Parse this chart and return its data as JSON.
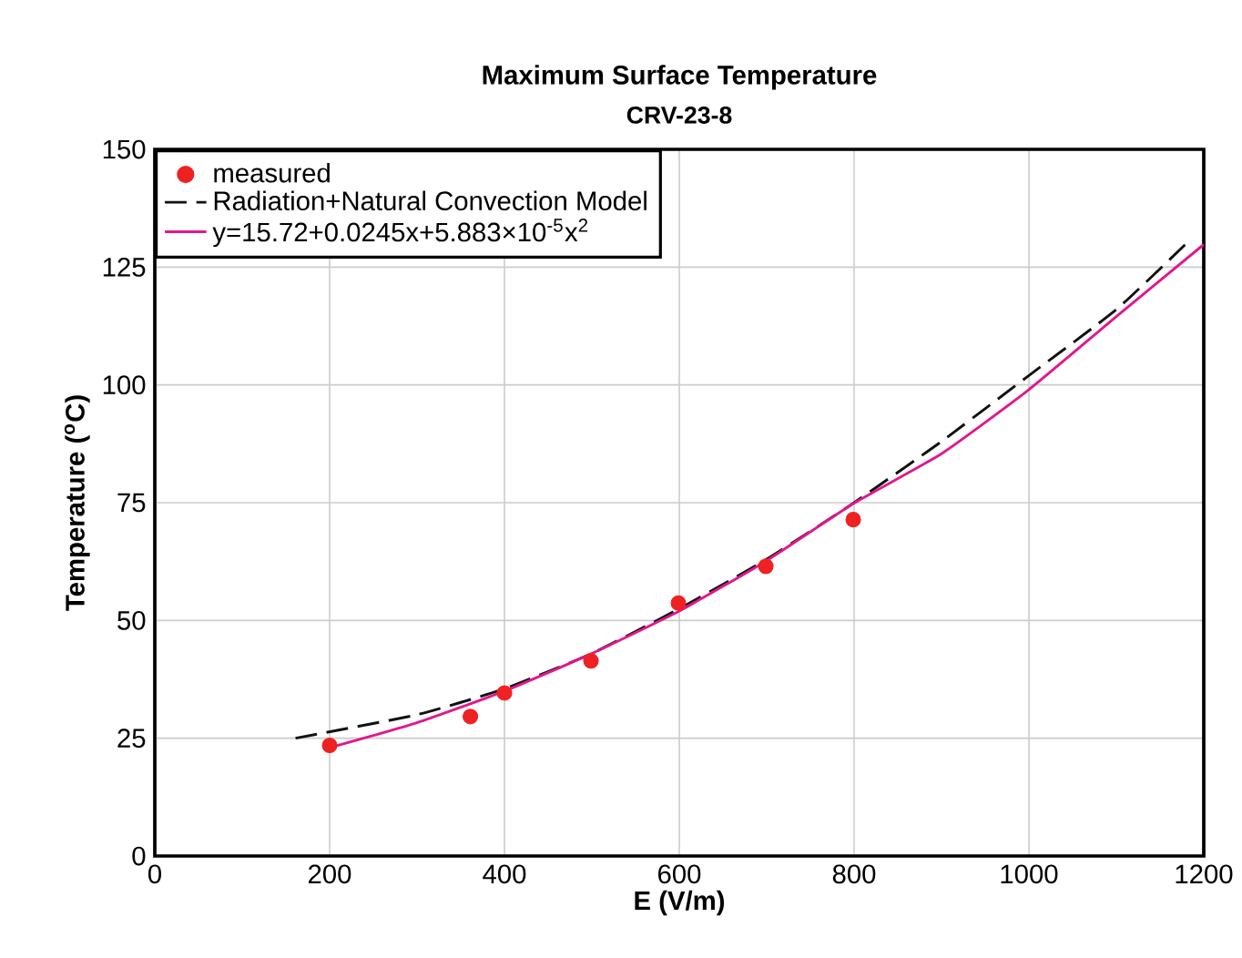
{
  "chart_data": {
    "type": "line",
    "title": "Maximum Surface Temperature",
    "subtitle": "CRV-23-8",
    "xlabel": "E (V/m)",
    "ylabel": "Temperature ($^{o}$C)",
    "xlim": [
      0,
      1200
    ],
    "xticks": [
      0,
      200,
      400,
      600,
      800,
      1000,
      1200
    ],
    "ylim": [
      0,
      150
    ],
    "yticks": [
      0,
      25,
      50,
      75,
      100,
      125,
      150
    ],
    "grid": true,
    "legend": "top left",
    "series": [
      {
        "name": "measured",
        "type": "scatter",
        "marker": "circle",
        "color": "#ee2222",
        "x": [
          200,
          361,
          400,
          499,
          599,
          699,
          799
        ],
        "values": [
          23.5,
          29.6,
          34.6,
          41.4,
          53.7,
          61.5,
          71.4
        ]
      },
      {
        "name": "Radiation+Natural Convection Model",
        "line_style": "dashed",
        "color": "#111111",
        "x": [
          161,
          300,
          400,
          500,
          600,
          700,
          800,
          900,
          1000,
          1100,
          1180
        ],
        "values": [
          25,
          30,
          35.5,
          43,
          52.5,
          63,
          75,
          88,
          102,
          116,
          130
        ]
      },
      {
        "name": "y=15.72+0.0245x+5.883×10$^{-5}$x$^{2}$",
        "line_style": "solid",
        "color": "#e0198c",
        "x": [
          200,
          300,
          400,
          500,
          600,
          700,
          800,
          900,
          1000,
          1100,
          1200
        ],
        "values": [
          23,
          28.3,
          35,
          43,
          52,
          62.7,
          74.9,
          85.4,
          99,
          114.5,
          129.8
        ]
      }
    ]
  }
}
